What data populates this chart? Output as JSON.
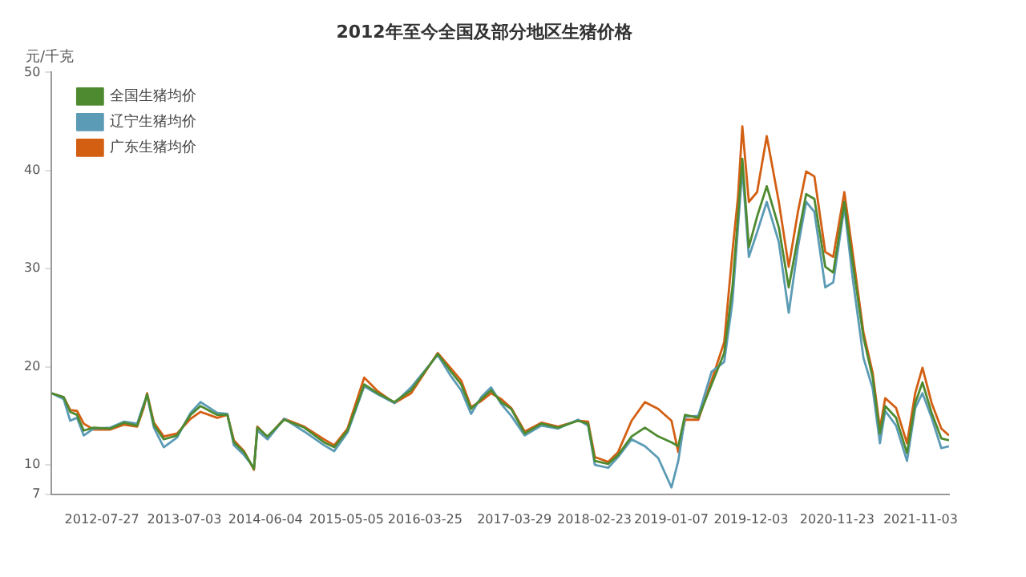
{
  "chart_data": {
    "type": "line",
    "title": "2012年至今全国及部分地区生猪价格",
    "ylabel": "元/千克",
    "x": [
      "2012-01-01",
      "2012-02-20",
      "2012-03-18",
      "2012-04-15",
      "2012-05-13",
      "2012-06-23",
      "2012-08-31",
      "2012-10-26",
      "2012-12-20",
      "2013-01-16",
      "2013-01-30",
      "2013-02-27",
      "2013-04-09",
      "2013-06-03",
      "2013-07-29",
      "2013-09-08",
      "2013-11-16",
      "2013-12-28",
      "2014-01-24",
      "2014-03-07",
      "2014-04-17",
      "2014-05-01",
      "2014-06-12",
      "2014-08-20",
      "2014-11-11",
      "2015-02-01",
      "2015-03-15",
      "2015-05-09",
      "2015-07-17",
      "2015-09-11",
      "2015-11-19",
      "2016-01-27",
      "2016-05-16",
      "2016-07-11",
      "2016-08-21",
      "2016-10-01",
      "2016-11-12",
      "2016-12-23",
      "2017-02-03",
      "2017-03-16",
      "2017-05-11",
      "2017-07-19",
      "2017-09-26",
      "2017-12-17",
      "2018-01-28",
      "2018-02-25",
      "2018-04-21",
      "2018-06-01",
      "2018-07-27",
      "2018-09-20",
      "2018-11-14",
      "2019-01-08",
      "2019-02-05",
      "2019-03-05",
      "2019-04-29",
      "2019-06-23",
      "2019-08-14",
      "2019-09-17",
      "2019-10-10",
      "2019-10-28",
      "2019-11-24",
      "2019-12-28",
      "2020-02-06",
      "2020-03-27",
      "2020-05-07",
      "2020-06-14",
      "2020-07-18",
      "2020-08-21",
      "2020-10-05",
      "2020-11-07",
      "2020-12-23",
      "2021-01-26",
      "2021-03-12",
      "2021-04-19",
      "2021-05-19",
      "2021-06-10",
      "2021-07-25",
      "2021-09-08",
      "2021-10-12",
      "2021-11-11",
      "2021-12-19",
      "2022-01-28",
      "2022-03-01"
    ],
    "series": [
      {
        "name": "全国生猪均价",
        "color": "#4e8a30",
        "values": [
          17.3,
          16.9,
          15.4,
          15.1,
          13.5,
          13.8,
          13.7,
          14.3,
          14.0,
          16.0,
          17.2,
          14.1,
          12.6,
          13.0,
          15.1,
          16.0,
          15.1,
          15.1,
          12.3,
          11.3,
          9.6,
          13.8,
          12.9,
          14.6,
          13.8,
          12.3,
          11.8,
          13.5,
          18.2,
          17.3,
          16.4,
          17.6,
          21.3,
          19.5,
          18.2,
          15.7,
          16.7,
          17.6,
          16.4,
          15.7,
          13.2,
          14.2,
          13.8,
          14.5,
          14.2,
          10.4,
          10.1,
          11.0,
          12.9,
          13.8,
          12.9,
          12.3,
          11.9,
          15.1,
          14.8,
          18.2,
          21.4,
          28.1,
          35.3,
          41.2,
          32.2,
          35.3,
          38.4,
          34.2,
          28.1,
          33.2,
          37.6,
          37.1,
          30.2,
          29.6,
          36.8,
          30.7,
          23.0,
          18.9,
          13.2,
          16.0,
          14.8,
          11.2,
          16.3,
          18.4,
          15.3,
          12.7,
          12.5
        ]
      },
      {
        "name": "辽宁生猪均价",
        "color": "#5b9bb5",
        "values": [
          17.3,
          16.7,
          14.5,
          14.8,
          13.0,
          13.7,
          13.8,
          14.4,
          14.2,
          16.2,
          17.1,
          13.8,
          11.8,
          12.8,
          15.3,
          16.4,
          15.3,
          15.2,
          12.0,
          11.0,
          9.7,
          13.5,
          12.6,
          14.7,
          13.4,
          12.0,
          11.4,
          13.3,
          18.0,
          17.2,
          16.3,
          17.9,
          21.2,
          19.0,
          17.6,
          15.2,
          16.9,
          17.9,
          16.2,
          15.0,
          13.0,
          14.0,
          13.7,
          14.6,
          14.0,
          10.0,
          9.7,
          10.8,
          12.6,
          11.9,
          10.7,
          7.7,
          10.4,
          14.9,
          15.0,
          19.5,
          20.5,
          26.6,
          34.2,
          40.2,
          31.2,
          33.7,
          36.8,
          32.7,
          25.5,
          32.2,
          36.8,
          35.8,
          28.1,
          28.6,
          36.3,
          29.1,
          20.9,
          17.8,
          12.2,
          15.5,
          14.0,
          10.4,
          15.8,
          17.3,
          14.8,
          11.7,
          11.9
        ]
      },
      {
        "name": "广东生猪均价",
        "color": "#d35f13",
        "values": [
          17.3,
          16.9,
          15.6,
          15.5,
          14.2,
          13.6,
          13.6,
          14.1,
          13.9,
          15.8,
          17.3,
          14.3,
          12.9,
          13.2,
          14.7,
          15.4,
          14.8,
          15.1,
          12.5,
          11.4,
          9.5,
          13.9,
          12.8,
          14.7,
          13.9,
          12.6,
          12.0,
          13.7,
          18.9,
          17.5,
          16.3,
          17.3,
          21.4,
          19.8,
          18.6,
          15.9,
          16.5,
          17.3,
          16.7,
          15.8,
          13.4,
          14.3,
          13.9,
          14.5,
          14.4,
          10.8,
          10.3,
          11.3,
          14.5,
          16.4,
          15.7,
          14.5,
          11.3,
          14.6,
          14.6,
          18.6,
          22.5,
          31.7,
          37.3,
          44.5,
          36.8,
          37.8,
          43.5,
          36.8,
          30.2,
          35.8,
          39.9,
          39.4,
          31.7,
          31.2,
          37.8,
          31.7,
          23.5,
          19.4,
          13.7,
          16.8,
          15.8,
          12.2,
          17.3,
          19.9,
          16.3,
          13.7,
          13.0
        ]
      }
    ],
    "xlim": [
      "2012-01-01",
      "2022-03-01"
    ],
    "xticks": [
      "2012-07-27",
      "2013-07-03",
      "2014-06-04",
      "2015-05-05",
      "2016-03-25",
      "2017-03-29",
      "2018-02-23",
      "2019-01-07",
      "2019-12-03",
      "2020-11-23",
      "2021-11-03"
    ],
    "ylim": [
      7,
      50
    ],
    "yticks": [
      7,
      10,
      20,
      30,
      40,
      50
    ],
    "grid": false,
    "legend": "top left",
    "marker": "none",
    "line_style": "solid"
  }
}
